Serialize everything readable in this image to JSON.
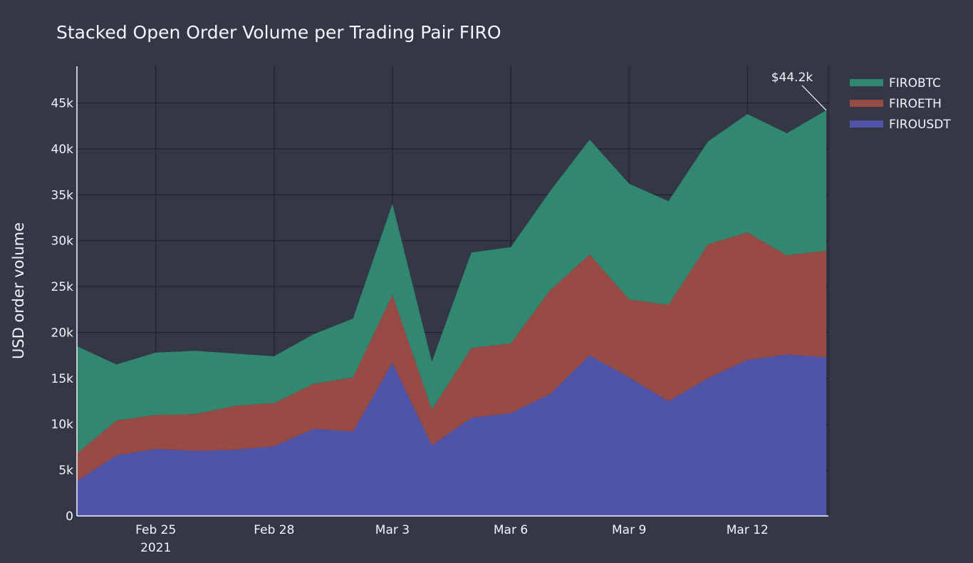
{
  "chart_data": {
    "type": "area",
    "title": "Stacked Open Order Volume per Trading Pair FIRO",
    "xlabel": "",
    "ylabel": "USD order volume",
    "x": [
      "2021-02-23",
      "2021-02-24",
      "2021-02-25",
      "2021-02-26",
      "2021-02-27",
      "2021-02-28",
      "2021-03-01",
      "2021-03-02",
      "2021-03-03",
      "2021-03-04",
      "2021-03-05",
      "2021-03-06",
      "2021-03-07",
      "2021-03-08",
      "2021-03-09",
      "2021-03-10",
      "2021-03-11",
      "2021-03-12",
      "2021-03-13",
      "2021-03-14"
    ],
    "series": [
      {
        "name": "FIROUSDT",
        "color": "#4f54a9",
        "values": [
          3800,
          6600,
          7300,
          7100,
          7200,
          7600,
          9500,
          9200,
          16700,
          7700,
          10700,
          11200,
          13300,
          17500,
          15100,
          12500,
          15000,
          17000,
          17600,
          17300
        ]
      },
      {
        "name": "FIROETH",
        "color": "#984a44",
        "values": [
          3000,
          3800,
          3700,
          4000,
          4800,
          4700,
          4900,
          5900,
          7400,
          3900,
          7600,
          7600,
          11300,
          11000,
          8500,
          10500,
          14600,
          13900,
          10800,
          11600
        ]
      },
      {
        "name": "FIROBTC",
        "color": "#318770",
        "values": [
          11700,
          6100,
          6800,
          6900,
          5700,
          5100,
          5400,
          6400,
          9900,
          5200,
          10400,
          10500,
          10800,
          12500,
          12600,
          11300,
          11200,
          12900,
          13300,
          15300
        ]
      }
    ],
    "legend_order": [
      "FIROBTC",
      "FIROETH",
      "FIROUSDT"
    ],
    "ylim": [
      0,
      49000
    ],
    "y_ticks": [
      0,
      5000,
      10000,
      15000,
      20000,
      25000,
      30000,
      35000,
      40000,
      45000
    ],
    "y_tick_labels": [
      "0",
      "5k",
      "10k",
      "15k",
      "20k",
      "25k",
      "30k",
      "35k",
      "40k",
      "45k"
    ],
    "x_ticks": [
      {
        "x": "2021-02-25",
        "label": "Feb 25",
        "sublabel": "2021"
      },
      {
        "x": "2021-02-28",
        "label": "Feb 28",
        "sublabel": ""
      },
      {
        "x": "2021-03-03",
        "label": "Mar 3",
        "sublabel": ""
      },
      {
        "x": "2021-03-06",
        "label": "Mar 6",
        "sublabel": ""
      },
      {
        "x": "2021-03-09",
        "label": "Mar 9",
        "sublabel": ""
      },
      {
        "x": "2021-03-12",
        "label": "Mar 12",
        "sublabel": ""
      }
    ],
    "annotation": {
      "text": "$44.2k",
      "x": "2021-03-14",
      "y": 44200
    },
    "grid": true,
    "legend_position": "top-right"
  }
}
